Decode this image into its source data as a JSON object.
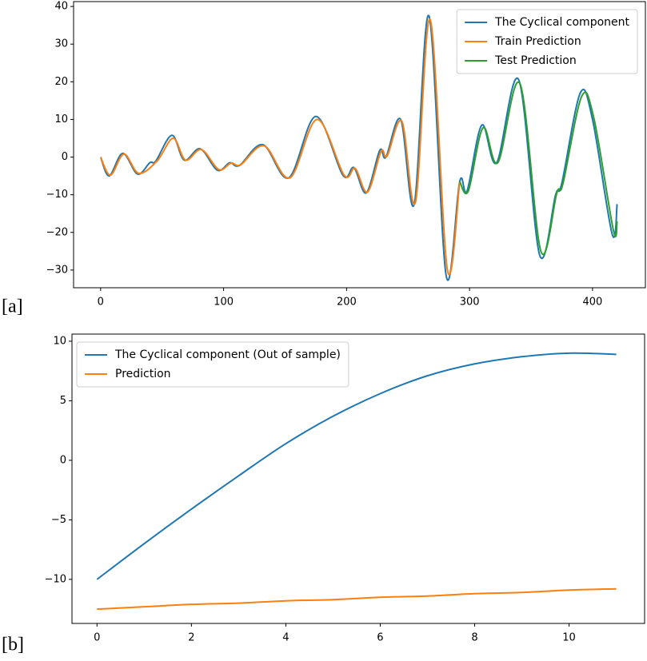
{
  "chart_data": [
    {
      "type": "line",
      "label": "[a]",
      "legend": "upper right",
      "xlim": [
        -22,
        443
      ],
      "ylim": [
        -34.7,
        41.3
      ],
      "xticks": [
        0,
        100,
        200,
        300,
        400
      ],
      "yticks": [
        {
          "value": -30,
          "label": "−30"
        },
        {
          "value": -20,
          "label": "−20"
        },
        {
          "value": -10,
          "label": "−10"
        },
        0,
        10,
        20,
        30,
        40
      ],
      "series": [
        {
          "name": "The Cyclical component",
          "color": "#1f77b4",
          "x": [
            0,
            7,
            18,
            30,
            40,
            45,
            58,
            68,
            81,
            95,
            105,
            113,
            132,
            153,
            175,
            197,
            206,
            216,
            227,
            232,
            244,
            255,
            267,
            281,
            292,
            298,
            310,
            322,
            340,
            357,
            370,
            375,
            390,
            400,
            416,
            420
          ],
          "values": [
            0,
            -5,
            1,
            -4.5,
            -1.5,
            -1,
            5.8,
            -0.8,
            2.2,
            -3.5,
            -1.5,
            -2.2,
            3.3,
            -5.5,
            10.8,
            -4.8,
            -2.8,
            -9.5,
            1.8,
            0,
            10,
            -12.5,
            37.5,
            -31.5,
            -6.5,
            -9,
            8.5,
            -1.5,
            20.5,
            -26,
            -10,
            -7,
            17,
            10,
            -20.5,
            -12.5
          ]
        },
        {
          "name": "Train Prediction",
          "color": "#ff7f0e",
          "x": [
            0,
            8,
            19,
            31,
            46,
            59,
            69,
            82,
            96,
            106,
            114,
            133,
            154,
            176,
            198,
            207,
            217,
            228,
            233,
            245,
            256,
            268,
            282,
            292
          ],
          "values": [
            0,
            -4.8,
            0.8,
            -4.3,
            -1,
            5,
            -0.8,
            2,
            -3.3,
            -1.6,
            -2,
            3,
            -5.5,
            10,
            -4.8,
            -3,
            -9.3,
            1.5,
            0.3,
            9.5,
            -12,
            36.5,
            -30,
            -6.5
          ]
        },
        {
          "name": "Test Prediction",
          "color": "#2ca02c",
          "x": [
            292,
            299,
            311,
            323,
            341,
            358,
            371,
            376,
            391,
            401,
            417,
            420
          ],
          "values": [
            -6.5,
            -9,
            7.8,
            -1.5,
            19.5,
            -25,
            -9.5,
            -7,
            16,
            10.5,
            -19.5,
            -17
          ]
        }
      ]
    },
    {
      "type": "line",
      "label": "[b]",
      "legend": "upper left",
      "xlim": [
        -0.53,
        11.6
      ],
      "ylim": [
        -13.7,
        10.6
      ],
      "xticks": [
        0,
        2,
        4,
        6,
        8,
        10
      ],
      "yticks": [
        {
          "value": -10,
          "label": "−10"
        },
        {
          "value": -5,
          "label": "−5"
        },
        0,
        5,
        10
      ],
      "x": [
        0,
        1,
        2,
        3,
        4,
        5,
        6,
        7,
        8,
        9,
        10,
        11
      ],
      "series": [
        {
          "name": "The Cyclical component (Out of sample)",
          "color": "#1f77b4",
          "values": [
            -10,
            -7,
            -4.1,
            -1.3,
            1.4,
            3.7,
            5.6,
            7.1,
            8.1,
            8.7,
            9.0,
            8.9
          ]
        },
        {
          "name": "Prediction",
          "color": "#ff7f0e",
          "values": [
            -12.5,
            -12.3,
            -12.1,
            -12.0,
            -11.8,
            -11.7,
            -11.5,
            -11.4,
            -11.2,
            -11.1,
            -10.9,
            -10.8
          ]
        }
      ]
    }
  ]
}
